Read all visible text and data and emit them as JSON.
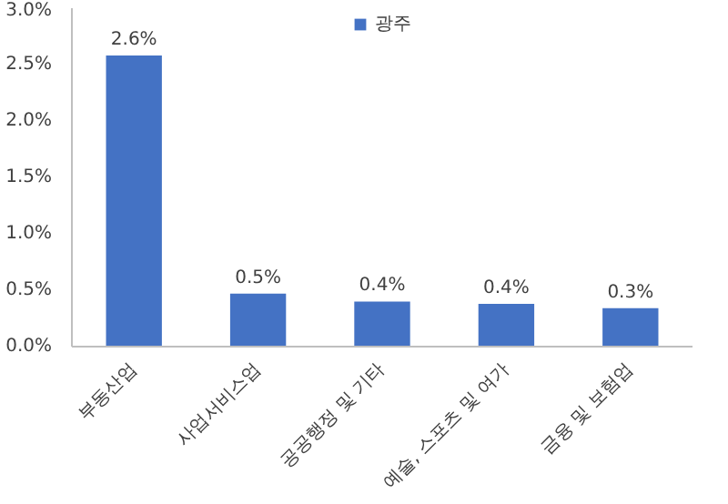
{
  "chart_data": {
    "type": "bar",
    "categories": [
      "부동산업",
      "사업서비스업",
      "공공행정 및 기타",
      "예술, 스포츠 및 여가",
      "금융 및 보험업"
    ],
    "series": [
      {
        "name": "광주",
        "color": "#4472c4",
        "values": [
          2.58,
          0.47,
          0.4,
          0.38,
          0.34
        ],
        "value_labels": [
          "2.6%",
          "0.5%",
          "0.4%",
          "0.4%",
          "0.3%"
        ]
      }
    ],
    "ylim": [
      0,
      3
    ],
    "yticks": [
      {
        "value": 0,
        "label": "0.0%"
      },
      {
        "value": 0.5,
        "label": "0.5%"
      },
      {
        "value": 1,
        "label": "1.0%"
      },
      {
        "value": 1.5,
        "label": "1.5%"
      },
      {
        "value": 2,
        "label": "2.0%"
      },
      {
        "value": 2.5,
        "label": "2.5%"
      },
      {
        "value": 3,
        "label": "3.0%"
      }
    ],
    "grid": false,
    "legend": "top"
  }
}
